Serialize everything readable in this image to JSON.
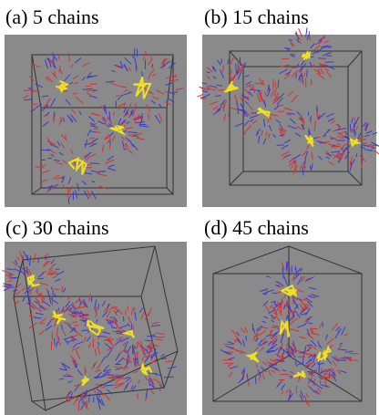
{
  "panels": [
    {
      "label": "(a) 5 chains"
    },
    {
      "label": "(b) 15 chains"
    },
    {
      "label": "(c) 30 chains"
    },
    {
      "label": "(d) 45 chains"
    }
  ]
}
